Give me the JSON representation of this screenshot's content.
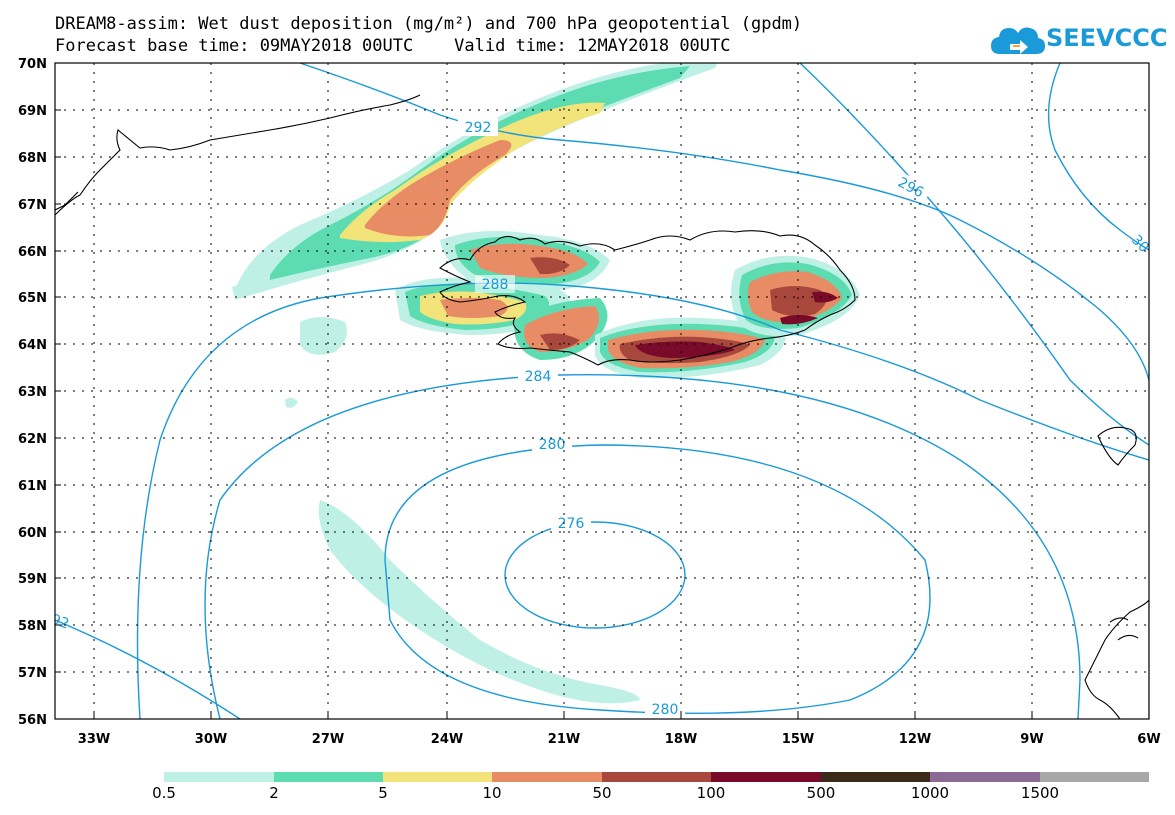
{
  "title": {
    "line1": "DREAM8-assim: Wet dust deposition (mg/m²) and 700 hPa geopotential (gpdm)",
    "line2": "Forecast base time: 09MAY2018 00UTC    Valid time: 12MAY2018 00UTC"
  },
  "logo": {
    "text": "SEEVCCC",
    "icon": "cloud-icon"
  },
  "axes": {
    "lat_labels": [
      "70N",
      "69N",
      "68N",
      "67N",
      "66N",
      "65N",
      "64N",
      "63N",
      "62N",
      "61N",
      "60N",
      "59N",
      "58N",
      "57N",
      "56N"
    ],
    "lon_labels": [
      "33W",
      "30W",
      "27W",
      "24W",
      "21W",
      "18W",
      "15W",
      "12W",
      "9W",
      "6W"
    ]
  },
  "contours": {
    "unit": "gpdm",
    "labels": [
      "292",
      "296",
      "30",
      "288",
      "284",
      "280",
      "276",
      "280",
      "92"
    ]
  },
  "legend": {
    "labels": [
      "0.5",
      "2",
      "5",
      "10",
      "50",
      "100",
      "500",
      "1000",
      "1500"
    ],
    "colors": [
      "#bff0e6",
      "#5cdcb0",
      "#f2e37a",
      "#e88c66",
      "#a8483c",
      "#7a0a2a",
      "#3a2a1a",
      "#8c6a96",
      "#a8a8a8"
    ]
  },
  "colors": {
    "contour": "#1a9ad8",
    "brand": "#1a9ad8"
  }
}
